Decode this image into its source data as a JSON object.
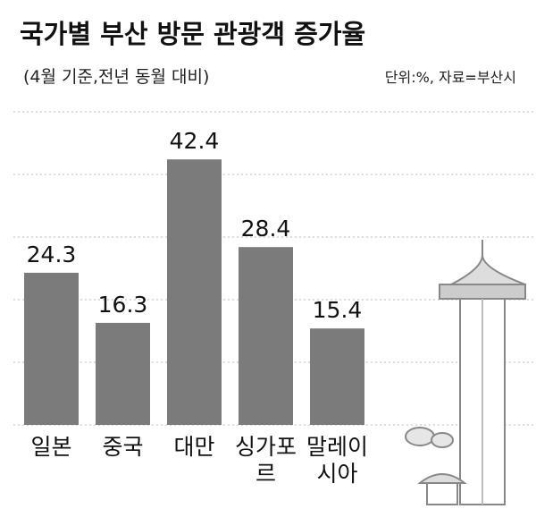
{
  "chart_data": {
    "type": "bar",
    "title": "국가별 부산 방문 관광객 증가율",
    "subtitle": "(4월 기준,전년 동월 대비)",
    "source": "단위:%, 자료=부산시",
    "categories": [
      "일본",
      "중국",
      "대만",
      "싱가포르",
      "말레이\n시아"
    ],
    "values": [
      24.3,
      16.3,
      42.4,
      28.4,
      15.4
    ],
    "color": "#7b7b7b",
    "ylim": [
      0,
      50
    ],
    "yticks": [
      0,
      10,
      20,
      30,
      40,
      50
    ],
    "ytick_labels": false,
    "grid": true
  }
}
